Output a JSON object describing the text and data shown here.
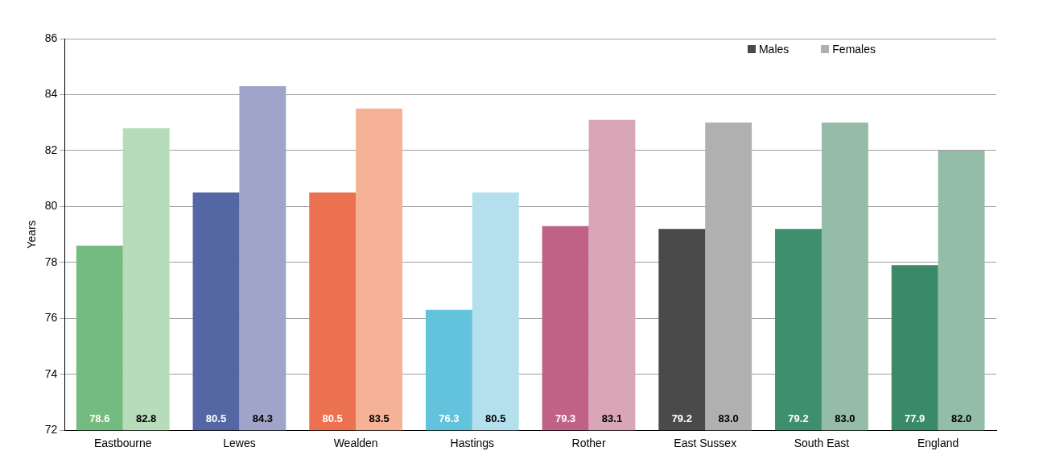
{
  "chart_data": {
    "type": "bar",
    "ylabel": "Years",
    "categories": [
      "Eastbourne",
      "Lewes",
      "Wealden",
      "Hastings",
      "Rother",
      "East Sussex",
      "South East",
      "England"
    ],
    "series": [
      {
        "name": "Males",
        "color": "#4a4a4a",
        "colors": [
          "#73bb7e",
          "#5566a5",
          "#ec7151",
          "#63c3dc",
          "#c06285",
          "#4a4a4a",
          "#3d8f6d",
          "#3a8a68"
        ],
        "values": [
          78.6,
          80.5,
          80.5,
          76.3,
          79.3,
          79.2,
          79.2,
          77.9
        ],
        "value_labels": [
          "78.6",
          "80.5",
          "80.5",
          "76.3",
          "79.3",
          "79.2",
          "79.2",
          "77.9"
        ]
      },
      {
        "name": "Females",
        "color": "#b0b0b1",
        "colors": [
          "#b7dcb9",
          "#9fa4ca",
          "#f5b296",
          "#b4e0ed",
          "#d9a6b8",
          "#b0b0b1",
          "#94bca6",
          "#94bda7"
        ],
        "values": [
          82.8,
          84.3,
          83.5,
          80.5,
          83.1,
          83.0,
          83.0,
          82.0
        ],
        "value_labels": [
          "82.8",
          "84.3",
          "83.5",
          "80.5",
          "83.1",
          "83.0",
          "83.0",
          "82.0"
        ]
      }
    ],
    "ylim": [
      72,
      86
    ],
    "yticks": [
      72,
      74,
      76,
      78,
      80,
      82,
      84,
      86
    ],
    "grid": "y",
    "legend": "top right"
  }
}
